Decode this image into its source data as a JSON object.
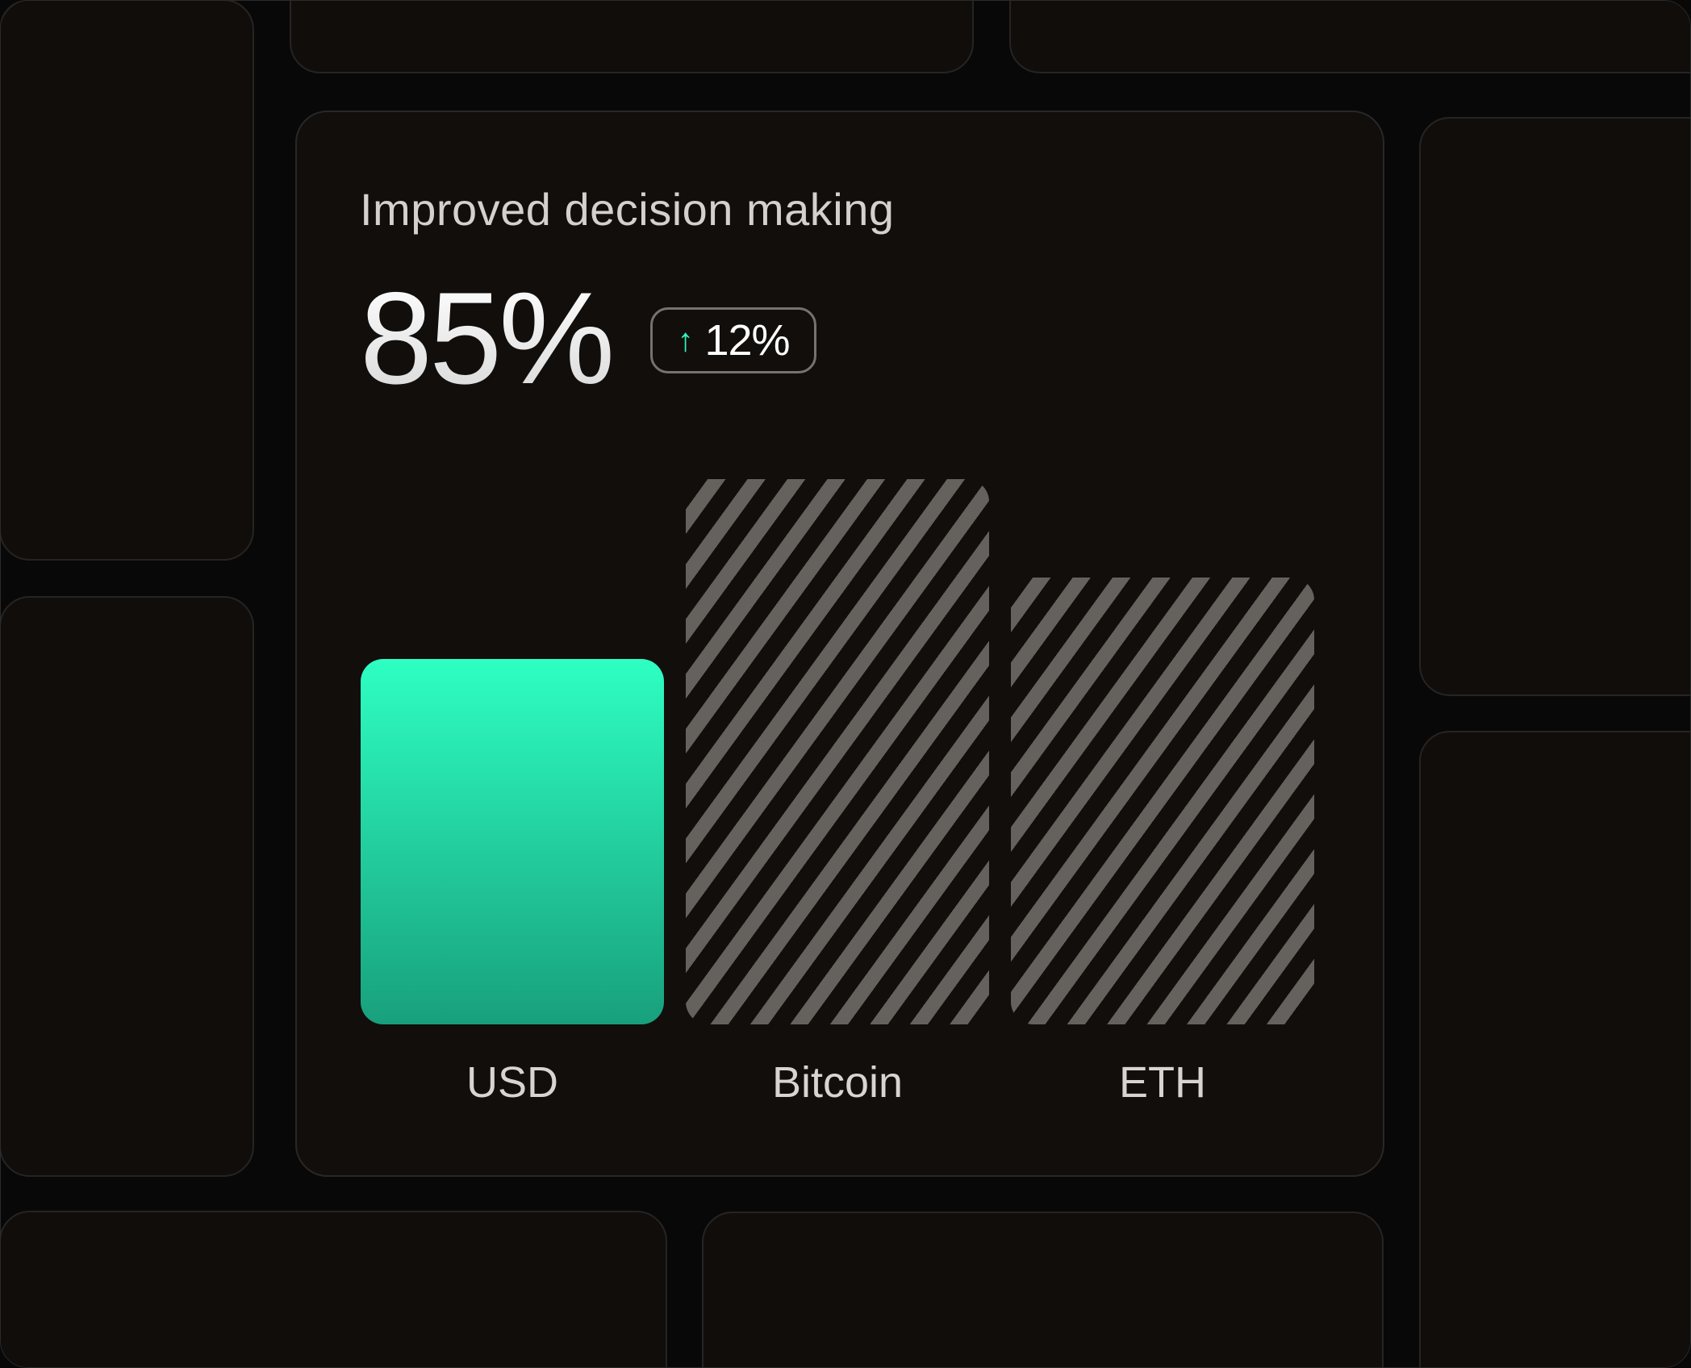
{
  "card": {
    "title": "Improved decision making",
    "metric": "85%",
    "change": {
      "direction": "up",
      "value": "12%",
      "icon": "arrow-up-icon",
      "color": "#2ef5c0"
    }
  },
  "chart_data": {
    "type": "bar",
    "categories": [
      "USD",
      "Bitcoin",
      "ETH"
    ],
    "values": [
      67,
      100,
      82
    ],
    "value_unit": "relative height, % of tallest bar (no axis shown)",
    "styles": [
      "solid-gradient",
      "hatched",
      "hatched"
    ],
    "colors": {
      "highlight_top": "#2effc2",
      "highlight_bottom": "#18a07c",
      "hatch": "#65615d"
    },
    "title": "",
    "xlabel": "",
    "ylabel": "",
    "grid": false
  }
}
